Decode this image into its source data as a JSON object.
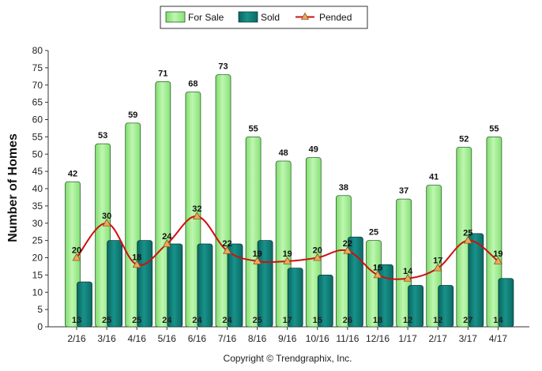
{
  "chart_data": {
    "type": "bar",
    "ylabel": "Number of Homes",
    "ylim": [
      0,
      80
    ],
    "y_ticks": [
      0,
      5,
      10,
      15,
      20,
      25,
      30,
      35,
      40,
      45,
      50,
      55,
      60,
      65,
      70,
      75,
      80
    ],
    "grid": false,
    "legend_position": "top-center",
    "categories": [
      "2/16",
      "3/16",
      "4/16",
      "5/16",
      "6/16",
      "7/16",
      "8/16",
      "9/16",
      "10/16",
      "11/16",
      "12/16",
      "1/17",
      "2/17",
      "3/17",
      "4/17"
    ],
    "series": [
      {
        "name": "For Sale",
        "type": "bar",
        "color": "#99ee88",
        "values": [
          42,
          53,
          59,
          71,
          68,
          73,
          55,
          48,
          49,
          38,
          25,
          37,
          41,
          52,
          55
        ]
      },
      {
        "name": "Sold",
        "type": "bar",
        "color": "#0f7a73",
        "values": [
          13,
          25,
          25,
          24,
          24,
          24,
          25,
          17,
          15,
          26,
          18,
          12,
          12,
          27,
          14
        ]
      },
      {
        "name": "Pended",
        "type": "line",
        "color": "#cc1111",
        "marker_color": "#f2a55a",
        "values": [
          20,
          30,
          18,
          24,
          32,
          22,
          19,
          19,
          20,
          22,
          15,
          14,
          17,
          25,
          19
        ]
      }
    ],
    "copyright": "Copyright © Trendgraphix, Inc."
  }
}
